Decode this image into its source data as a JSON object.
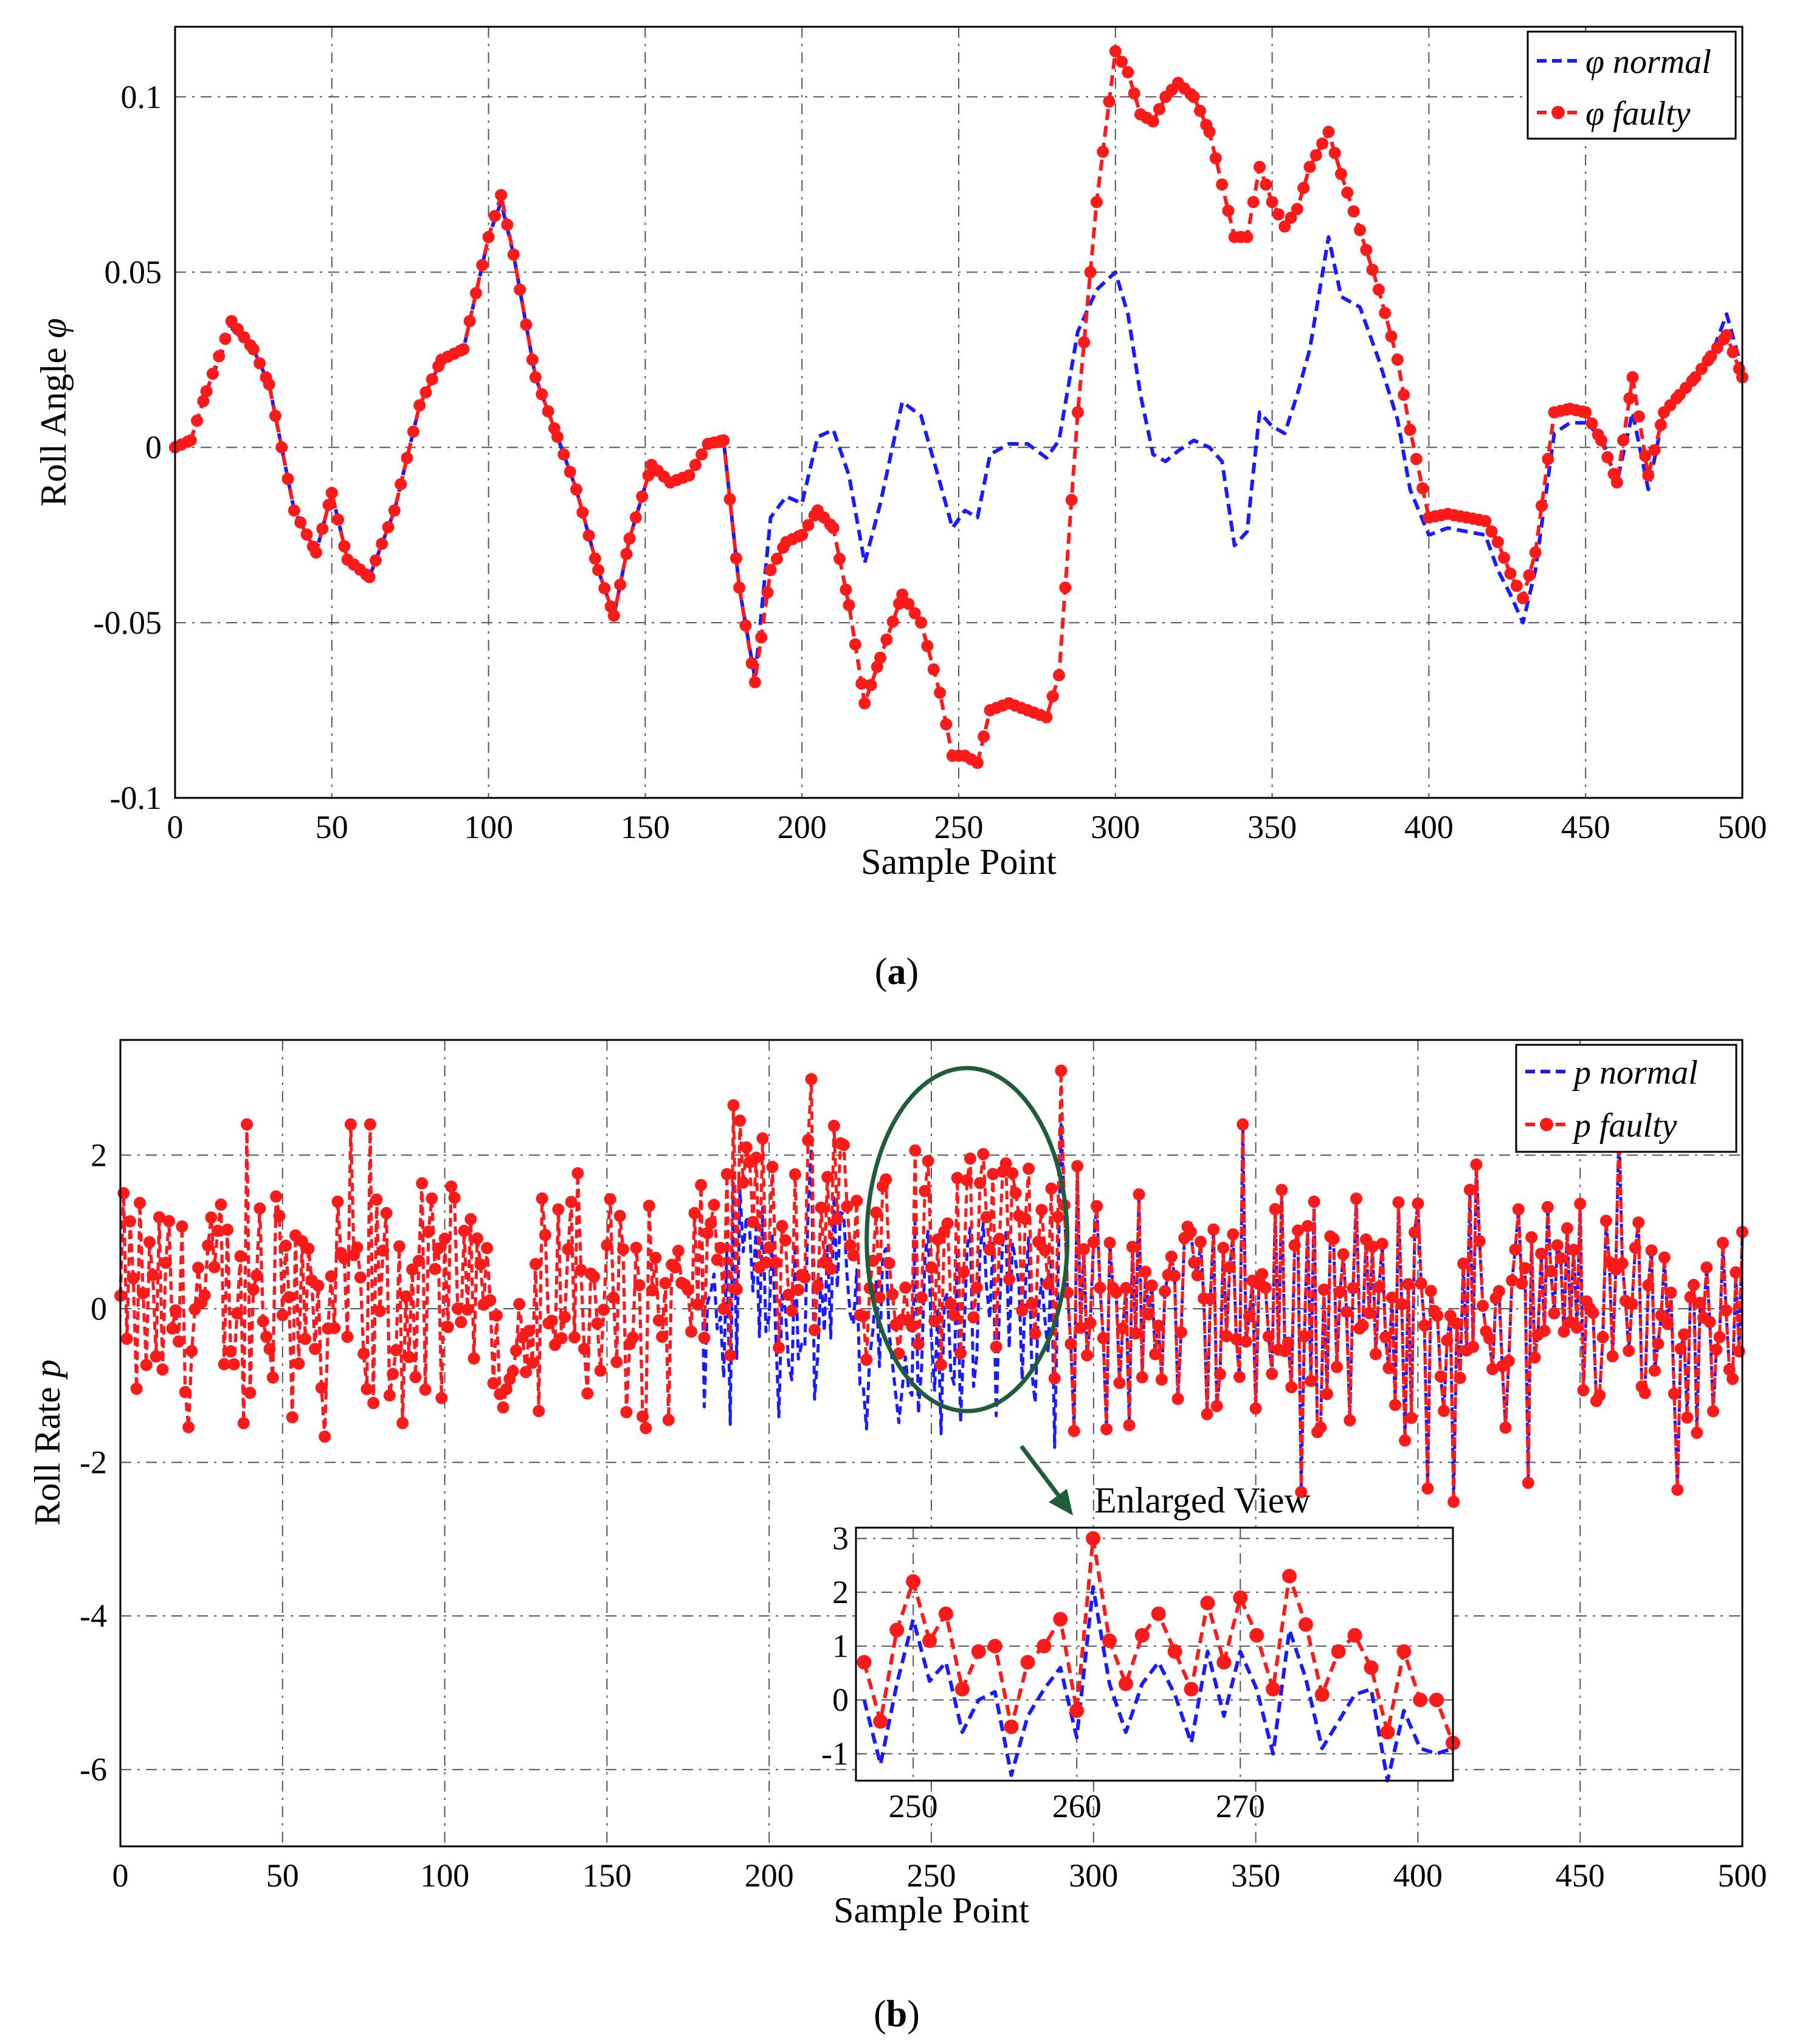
{
  "colors": {
    "normal": "#1a1aff",
    "faulty": "#ff1a1a",
    "ellipse": "#1f5c3a",
    "frame": "#000000"
  },
  "captions": {
    "a": "a",
    "b": "b"
  },
  "chart_data": [
    {
      "id": "a",
      "type": "line",
      "xlabel": "Sample Point",
      "ylabel_text": "Roll Angle ",
      "ylabel_symbol": "φ",
      "xlim": [
        0,
        500
      ],
      "ylim": [
        -0.1,
        0.12
      ],
      "xticks": [
        0,
        50,
        100,
        150,
        200,
        250,
        300,
        350,
        400,
        450,
        500
      ],
      "yticks": [
        -0.1,
        -0.05,
        0,
        0.05,
        0.1
      ],
      "ytick_labels": [
        "-0.1",
        "-0.05",
        "0",
        "0.05",
        "0.1"
      ],
      "legend_position": "top-right",
      "legend": [
        {
          "symbol": "φ",
          "label": " normal"
        },
        {
          "symbol": "φ",
          "label": " faulty"
        }
      ],
      "series": [
        {
          "name": "φ normal",
          "style": "dashed",
          "x": [
            0,
            5,
            10,
            18,
            25,
            30,
            38,
            45,
            50,
            55,
            62,
            70,
            78,
            85,
            92,
            100,
            104,
            108,
            115,
            122,
            128,
            135,
            140,
            145,
            152,
            158,
            164,
            170,
            175,
            180,
            185,
            190,
            195,
            200,
            205,
            210,
            215,
            220,
            225,
            232,
            238,
            244,
            248,
            252,
            256,
            260,
            266,
            272,
            278,
            282,
            288,
            294,
            300,
            304,
            308,
            312,
            316,
            320,
            325,
            330,
            334,
            338,
            342,
            346,
            350,
            354,
            358,
            362,
            368,
            372,
            378,
            384,
            390,
            394,
            400,
            406,
            412,
            418,
            422,
            426,
            430,
            434,
            440,
            445,
            450,
            455,
            460,
            465,
            470,
            475,
            480,
            485,
            490,
            495,
            500
          ],
          "values": [
            0,
            0.002,
            0.016,
            0.034,
            0.028,
            0.018,
            -0.018,
            -0.03,
            -0.013,
            -0.032,
            -0.037,
            -0.018,
            0.012,
            0.025,
            0.028,
            0.06,
            0.07,
            0.055,
            0.02,
            0.003,
            -0.012,
            -0.035,
            -0.048,
            -0.026,
            -0.005,
            -0.01,
            -0.008,
            0.001,
            0.002,
            -0.04,
            -0.066,
            -0.02,
            -0.014,
            -0.016,
            0.003,
            0.005,
            -0.008,
            -0.033,
            -0.016,
            0.013,
            0.009,
            -0.01,
            -0.023,
            -0.018,
            -0.02,
            -0.002,
            0.001,
            0.001,
            -0.003,
            0.002,
            0.033,
            0.045,
            0.05,
            0.038,
            0.015,
            -0.002,
            -0.004,
            -0.001,
            0.002,
            0,
            -0.004,
            -0.028,
            -0.024,
            0.01,
            0.006,
            0.004,
            0.015,
            0.028,
            0.06,
            0.043,
            0.04,
            0.025,
            0.008,
            -0.012,
            -0.025,
            -0.023,
            -0.024,
            -0.025,
            -0.035,
            -0.042,
            -0.05,
            -0.035,
            0.004,
            0.007,
            0.007,
            0.003,
            -0.01,
            0.01,
            -0.012,
            0.01,
            0.016,
            0.02,
            0.026,
            0.038,
            0.022
          ]
        },
        {
          "name": "φ faulty",
          "style": "dashed-marker",
          "x": [
            0,
            5,
            10,
            18,
            25,
            30,
            38,
            45,
            50,
            55,
            62,
            70,
            78,
            85,
            92,
            100,
            104,
            108,
            115,
            122,
            128,
            135,
            140,
            145,
            152,
            158,
            164,
            170,
            175,
            180,
            185,
            190,
            195,
            200,
            205,
            210,
            215,
            220,
            225,
            232,
            238,
            244,
            248,
            252,
            256,
            260,
            266,
            272,
            278,
            282,
            288,
            294,
            300,
            304,
            308,
            312,
            316,
            320,
            325,
            330,
            334,
            338,
            342,
            346,
            350,
            354,
            358,
            362,
            368,
            372,
            378,
            384,
            390,
            394,
            400,
            406,
            412,
            418,
            422,
            426,
            430,
            434,
            440,
            445,
            450,
            455,
            460,
            465,
            470,
            475,
            480,
            485,
            490,
            495,
            500
          ],
          "values": [
            0,
            0.002,
            0.016,
            0.036,
            0.028,
            0.018,
            -0.018,
            -0.03,
            -0.013,
            -0.032,
            -0.037,
            -0.018,
            0.012,
            0.025,
            0.028,
            0.06,
            0.072,
            0.055,
            0.02,
            0.003,
            -0.012,
            -0.035,
            -0.048,
            -0.026,
            -0.005,
            -0.01,
            -0.008,
            0.001,
            0.002,
            -0.04,
            -0.067,
            -0.035,
            -0.027,
            -0.025,
            -0.018,
            -0.023,
            -0.045,
            -0.073,
            -0.06,
            -0.042,
            -0.05,
            -0.07,
            -0.088,
            -0.088,
            -0.09,
            -0.075,
            -0.073,
            -0.075,
            -0.077,
            -0.065,
            0.01,
            0.07,
            0.113,
            0.107,
            0.095,
            0.093,
            0.1,
            0.104,
            0.1,
            0.09,
            0.075,
            0.06,
            0.06,
            0.08,
            0.07,
            0.063,
            0.068,
            0.08,
            0.09,
            0.078,
            0.062,
            0.045,
            0.025,
            0.005,
            -0.02,
            -0.019,
            -0.02,
            -0.021,
            -0.027,
            -0.036,
            -0.043,
            -0.03,
            0.01,
            0.011,
            0.01,
            0.002,
            -0.01,
            0.02,
            -0.008,
            0.01,
            0.015,
            0.02,
            0.026,
            0.032,
            0.02
          ]
        }
      ]
    },
    {
      "id": "b",
      "type": "line",
      "xlabel": "Sample Point",
      "ylabel_text": "Roll Rate ",
      "ylabel_symbol": "p",
      "xlim": [
        0,
        500
      ],
      "ylim": [
        -7,
        3.5
      ],
      "xticks": [
        0,
        50,
        100,
        150,
        200,
        250,
        300,
        350,
        400,
        450,
        500
      ],
      "yticks": [
        -6,
        -4,
        -2,
        0,
        2
      ],
      "ytick_labels": [
        "-6",
        "-4",
        "-2",
        "0",
        "2"
      ],
      "legend_position": "top-right",
      "legend": [
        {
          "symbol": "",
          "label": "p normal"
        },
        {
          "symbol": "",
          "label": "p faulty"
        }
      ],
      "annotation": "Enlarged View",
      "highlight_ellipse_center": [
        261,
        0.9
      ],
      "noise_note": "dense noise series of 501 samples, amplitude about ±2",
      "faulty_range": [
        180,
        290
      ],
      "faulty_offset": 0.9,
      "inset": {
        "type": "line",
        "xlim": [
          246.5,
          283
        ],
        "ylim": [
          -1.5,
          3.2
        ],
        "xticks": [
          250,
          260,
          270
        ],
        "yticks": [
          -1,
          0,
          1,
          2,
          3
        ],
        "ytick_labels": [
          "-1",
          "0",
          "1",
          "2",
          "3"
        ],
        "series": [
          {
            "name": "p normal",
            "x": [
              247,
              248,
              249,
              250,
              251,
              252,
              253,
              254,
              255,
              256,
              257,
              258,
              259,
              260,
              261,
              262,
              263,
              264,
              265,
              266,
              267,
              268,
              269,
              270,
              271,
              272,
              273,
              274,
              275,
              276,
              277,
              278,
              279,
              280,
              281,
              282,
              283
            ],
            "values": [
              0.0,
              -1.2,
              0.3,
              1.5,
              0.35,
              0.7,
              -0.6,
              0.0,
              0.15,
              -1.4,
              -0.3,
              0.2,
              0.6,
              -0.7,
              2.1,
              0.3,
              -0.6,
              0.3,
              0.7,
              0.1,
              -0.8,
              0.9,
              -0.3,
              0.9,
              0.2,
              -1.0,
              1.3,
              0.4,
              -0.9,
              -0.4,
              0.1,
              0.2,
              -1.5,
              -0.2,
              -0.9,
              -1.0,
              -0.9
            ]
          },
          {
            "name": "p faulty",
            "x": [
              247,
              248,
              249,
              250,
              251,
              252,
              253,
              254,
              255,
              256,
              257,
              258,
              259,
              260,
              261,
              262,
              263,
              264,
              265,
              266,
              267,
              268,
              269,
              270,
              271,
              272,
              273,
              274,
              275,
              276,
              277,
              278,
              279,
              280,
              281,
              282,
              283
            ],
            "values": [
              0.7,
              -0.4,
              1.3,
              2.2,
              1.1,
              1.6,
              0.2,
              0.9,
              1.0,
              -0.5,
              0.7,
              1.0,
              1.5,
              -0.2,
              3.0,
              1.1,
              0.3,
              1.2,
              1.6,
              0.9,
              0.2,
              1.8,
              0.7,
              1.9,
              1.2,
              0.2,
              2.3,
              1.4,
              0.1,
              0.9,
              1.2,
              0.6,
              -0.6,
              0.9,
              0.0,
              0.0,
              -0.8
            ]
          }
        ]
      }
    }
  ]
}
